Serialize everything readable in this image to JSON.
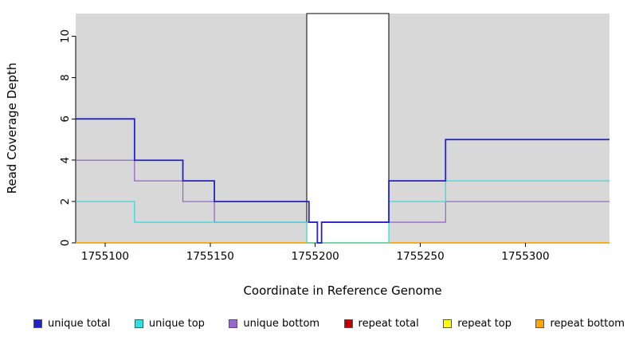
{
  "chart": {
    "x_axis_title": "Coordinate in Reference Genome",
    "y_axis_title": "Read Coverage Depth"
  },
  "chart_data": {
    "type": "line",
    "subtype": "step-coverage",
    "title": "",
    "xlabel": "Coordinate in Reference Genome",
    "ylabel": "Read Coverage Depth",
    "xlim": [
      1755086,
      1755340
    ],
    "ylim": [
      0,
      11.1
    ],
    "x_ticks": [
      1755100,
      1755150,
      1755200,
      1755250,
      1755300
    ],
    "y_ticks": [
      0,
      2,
      4,
      6,
      8,
      10
    ],
    "grid": false,
    "plot_bg": "#d8d8d8",
    "highlight_band": {
      "x0": 1755196,
      "x1": 1755235,
      "fill": "#ffffff",
      "stroke": "#000000"
    },
    "series": [
      {
        "name": "repeat total",
        "color": "#c00000",
        "width": 1.3,
        "steps": [
          [
            1755086,
            0
          ]
        ]
      },
      {
        "name": "repeat top",
        "color": "#ffff00",
        "width": 1.3,
        "steps": [
          [
            1755086,
            0
          ]
        ]
      },
      {
        "name": "repeat bottom",
        "color": "#ffa500",
        "width": 1.5,
        "steps": [
          [
            1755086,
            0
          ]
        ]
      },
      {
        "name": "unique bottom",
        "color": "#9966cc",
        "width": 1.3,
        "steps": [
          [
            1755086,
            4
          ],
          [
            1755114,
            3
          ],
          [
            1755137,
            2
          ],
          [
            1755152,
            1
          ],
          [
            1755201,
            0
          ],
          [
            1755203,
            1
          ],
          [
            1755262,
            2
          ]
        ]
      },
      {
        "name": "unique top",
        "color": "#33dddd",
        "width": 1.3,
        "steps": [
          [
            1755086,
            2
          ],
          [
            1755114,
            1
          ],
          [
            1755196,
            0
          ],
          [
            1755235,
            2
          ],
          [
            1755262,
            3
          ]
        ]
      },
      {
        "name": "unique total",
        "color": "#2222cc",
        "width": 1.8,
        "steps": [
          [
            1755086,
            6
          ],
          [
            1755114,
            4
          ],
          [
            1755137,
            3
          ],
          [
            1755152,
            2
          ],
          [
            1755197,
            1
          ],
          [
            1755201,
            0
          ],
          [
            1755203,
            1
          ],
          [
            1755235,
            3
          ],
          [
            1755262,
            5
          ]
        ]
      }
    ],
    "legend_position": "bottom",
    "legend": [
      {
        "label": "unique total",
        "color": "#2222cc"
      },
      {
        "label": "unique top",
        "color": "#33dddd"
      },
      {
        "label": "unique bottom",
        "color": "#9966cc"
      },
      {
        "label": "repeat total",
        "color": "#c00000"
      },
      {
        "label": "repeat top",
        "color": "#ffff00"
      },
      {
        "label": "repeat bottom",
        "color": "#ffa500"
      }
    ]
  }
}
